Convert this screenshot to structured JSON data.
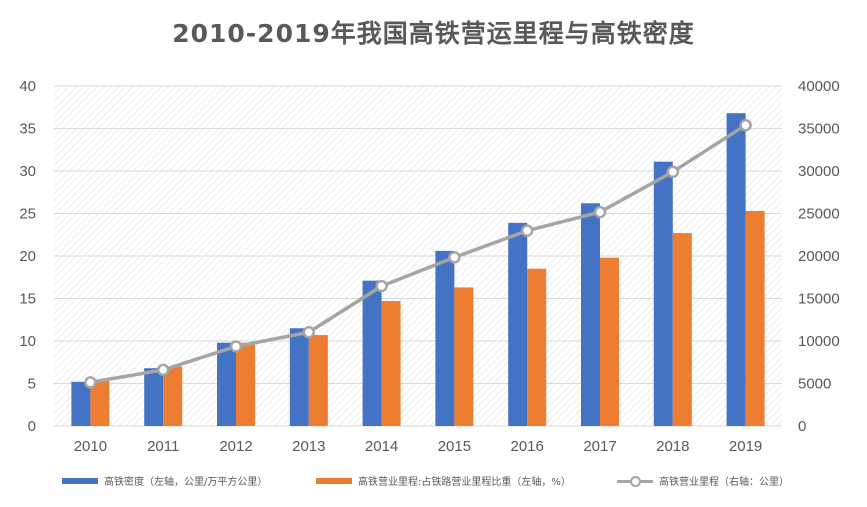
{
  "chart_data": {
    "type": "bar+line",
    "title": "2010-2019年我国高铁营运里程与高铁密度",
    "categories": [
      "2010",
      "2011",
      "2012",
      "2013",
      "2014",
      "2015",
      "2016",
      "2017",
      "2018",
      "2019"
    ],
    "y_left": {
      "min": 0,
      "max": 40,
      "ticks": [
        0,
        5,
        10,
        15,
        20,
        25,
        30,
        35,
        40
      ]
    },
    "y_right": {
      "min": 0,
      "max": 40000,
      "ticks": [
        0,
        5000,
        10000,
        15000,
        20000,
        25000,
        30000,
        35000,
        40000
      ]
    },
    "series": [
      {
        "name": "高铁密度（左轴，公里/万平方公里）",
        "type": "bar",
        "axis": "left",
        "color": "#4472c4",
        "values": [
          5.2,
          6.8,
          9.8,
          11.5,
          17.1,
          20.6,
          23.9,
          26.2,
          31.1,
          36.8
        ]
      },
      {
        "name": "高铁营业里程:占铁路营业里程比重（左轴，%）",
        "type": "bar",
        "axis": "left",
        "color": "#ed7d31",
        "values": [
          5.3,
          7.0,
          9.8,
          10.7,
          14.7,
          16.3,
          18.5,
          19.8,
          22.7,
          25.3
        ]
      },
      {
        "name": "高铁营业里程（右轴：公里）",
        "type": "line",
        "axis": "right",
        "color": "#a5a5a5",
        "values": [
          5133,
          6601,
          9356,
          11028,
          16456,
          19838,
          22980,
          25164,
          29904,
          35388
        ]
      }
    ],
    "legend_position": "bottom",
    "grid": true
  }
}
